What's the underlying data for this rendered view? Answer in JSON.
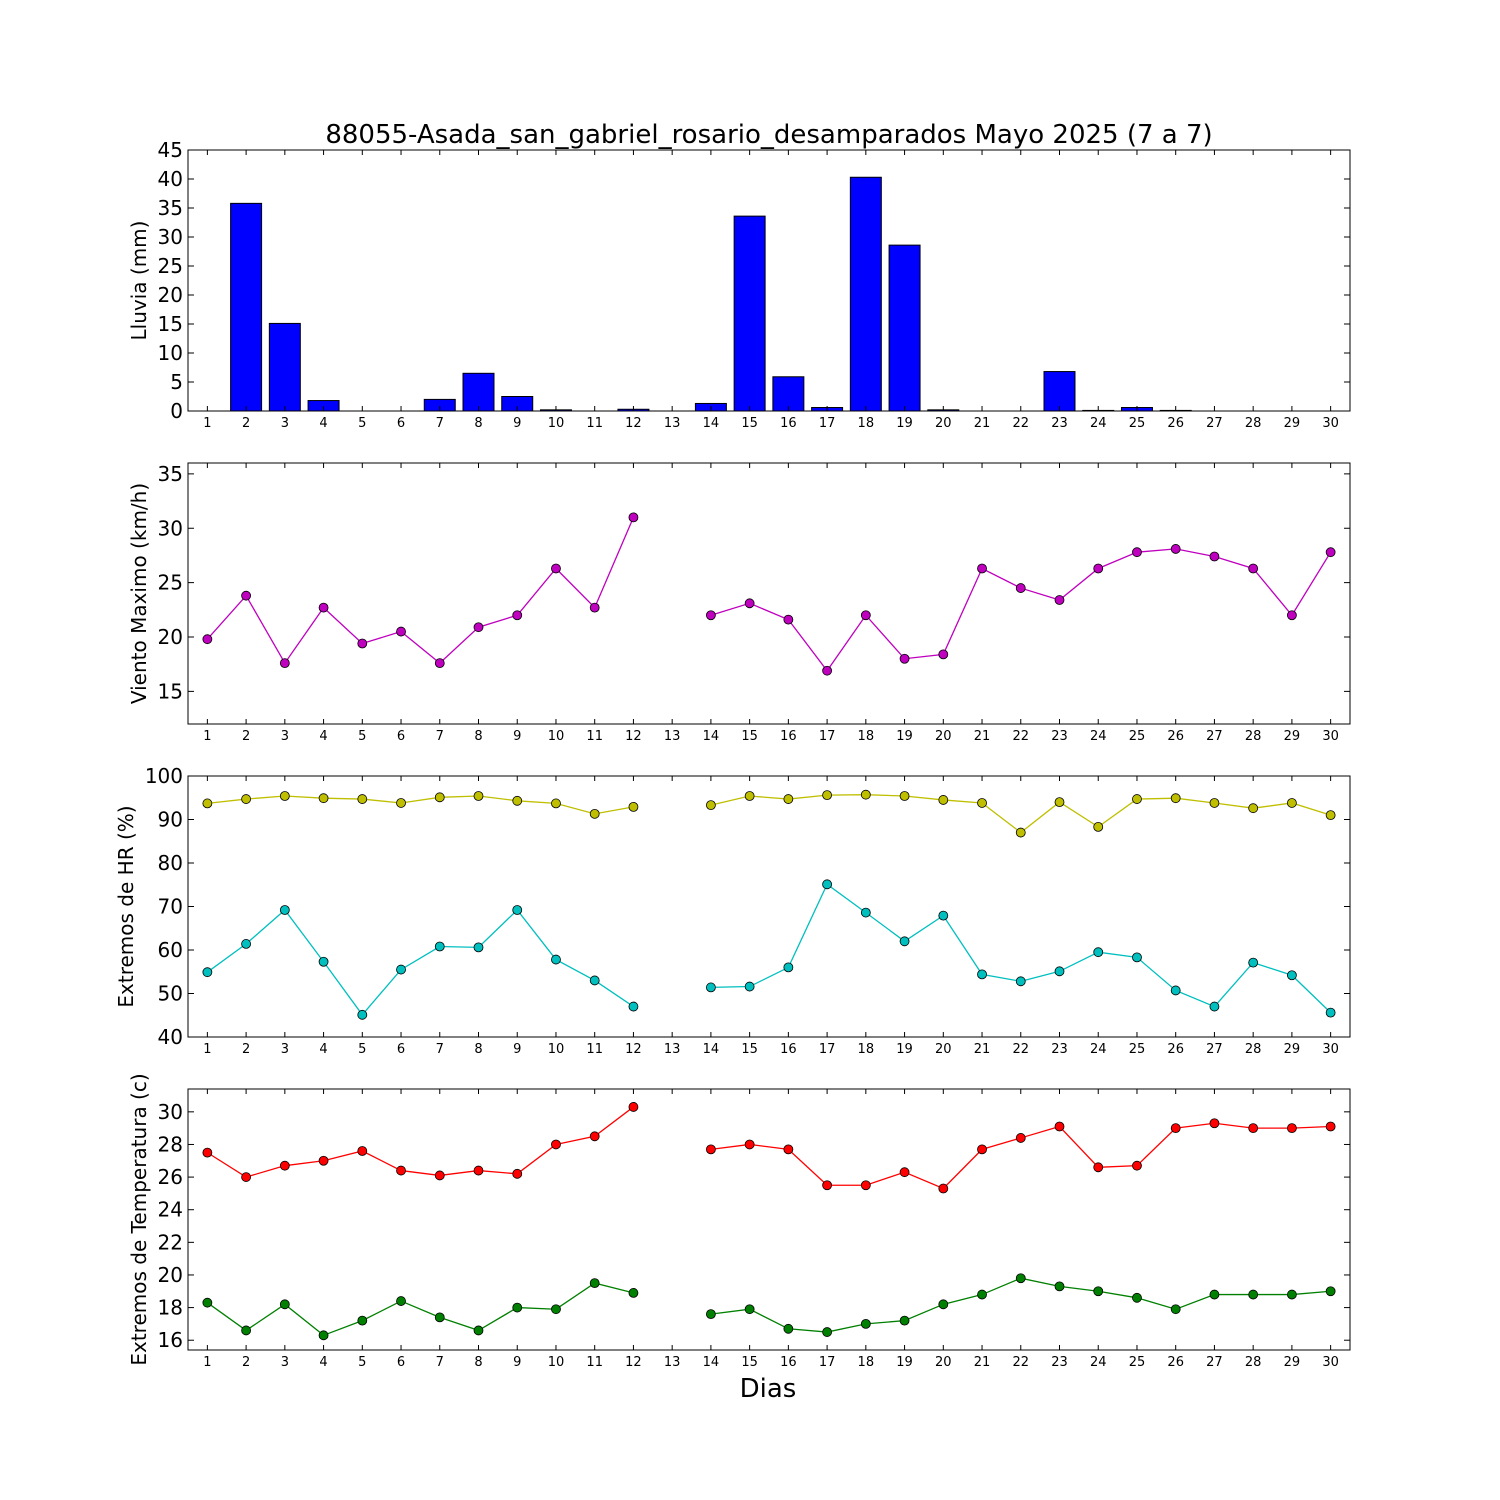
{
  "title": "88055-Asada_san_gabriel_rosario_desamparados Mayo 2025  (7 a 7)",
  "xlabel": "Dias",
  "colors": {
    "rain_bar": "#0000ff",
    "wind": "#bf00bf",
    "hr_max": "#bfbf00",
    "hr_min": "#00bfbf",
    "temp_max": "#ff0000",
    "temp_min": "#008000"
  },
  "chart_data": [
    {
      "type": "bar",
      "ylabel": "Lluvia (mm)",
      "ylim": [
        0,
        45
      ],
      "yticks": [
        0,
        5,
        10,
        15,
        20,
        25,
        30,
        35,
        40,
        45
      ],
      "categories": [
        1,
        2,
        3,
        4,
        5,
        6,
        7,
        8,
        9,
        10,
        11,
        12,
        13,
        14,
        15,
        16,
        17,
        18,
        19,
        20,
        21,
        22,
        23,
        24,
        25,
        26,
        27,
        28,
        29,
        30
      ],
      "values": [
        0,
        35.8,
        15.1,
        1.8,
        0,
        0,
        2.0,
        6.5,
        2.5,
        0.2,
        0,
        0.3,
        0,
        1.3,
        33.6,
        5.9,
        0.6,
        40.3,
        28.6,
        0.2,
        0,
        0,
        6.8,
        0.1,
        0.6,
        0.1,
        0,
        0,
        0,
        0
      ],
      "grid": false
    },
    {
      "type": "line",
      "ylabel": "Viento Maximo (km/h)",
      "ylim": [
        12,
        36
      ],
      "yticks": [
        15,
        20,
        25,
        30,
        35
      ],
      "x": [
        1,
        2,
        3,
        4,
        5,
        6,
        7,
        8,
        9,
        10,
        11,
        12,
        13,
        14,
        15,
        16,
        17,
        18,
        19,
        20,
        21,
        22,
        23,
        24,
        25,
        26,
        27,
        28,
        29,
        30
      ],
      "series": [
        {
          "values": [
            19.8,
            23.8,
            17.6,
            22.7,
            19.4,
            20.5,
            17.6,
            20.9,
            22.0,
            26.3,
            22.7,
            31.0,
            null,
            22.0,
            23.1,
            21.6,
            16.9,
            22.0,
            18.0,
            18.4,
            26.3,
            24.5,
            23.4,
            26.3,
            27.8,
            28.1,
            27.4,
            26.3,
            22.0,
            27.8
          ]
        }
      ],
      "grid": false
    },
    {
      "type": "line",
      "ylabel": "Extremos de HR (%)",
      "ylim": [
        40,
        100
      ],
      "yticks": [
        40,
        50,
        60,
        70,
        80,
        90,
        100
      ],
      "x": [
        1,
        2,
        3,
        4,
        5,
        6,
        7,
        8,
        9,
        10,
        11,
        12,
        13,
        14,
        15,
        16,
        17,
        18,
        19,
        20,
        21,
        22,
        23,
        24,
        25,
        26,
        27,
        28,
        29,
        30
      ],
      "series": [
        {
          "values": [
            93.7,
            94.7,
            95.4,
            94.9,
            94.7,
            93.8,
            95.1,
            95.4,
            94.3,
            93.7,
            91.3,
            92.9,
            null,
            93.3,
            95.4,
            94.7,
            95.6,
            95.7,
            95.4,
            94.5,
            93.8,
            87.0,
            94.0,
            88.3,
            94.7,
            94.9,
            93.8,
            92.6,
            93.8,
            91.0
          ]
        },
        {
          "values": [
            54.9,
            61.4,
            69.2,
            57.3,
            45.1,
            55.5,
            60.8,
            60.6,
            69.2,
            57.8,
            53.0,
            47.0,
            null,
            51.4,
            51.6,
            56.0,
            75.1,
            68.6,
            62.0,
            67.9,
            54.4,
            52.8,
            55.1,
            59.5,
            58.3,
            50.7,
            47.0,
            57.1,
            54.2,
            45.6
          ]
        }
      ],
      "grid": false
    },
    {
      "type": "line",
      "ylabel": "Extremos de Temperatura (c)",
      "ylim": [
        15.4,
        31.4
      ],
      "yticks": [
        16,
        18,
        20,
        22,
        24,
        26,
        28,
        30
      ],
      "x": [
        1,
        2,
        3,
        4,
        5,
        6,
        7,
        8,
        9,
        10,
        11,
        12,
        13,
        14,
        15,
        16,
        17,
        18,
        19,
        20,
        21,
        22,
        23,
        24,
        25,
        26,
        27,
        28,
        29,
        30
      ],
      "series": [
        {
          "values": [
            27.5,
            26.0,
            26.7,
            27.0,
            27.6,
            26.4,
            26.1,
            26.4,
            26.2,
            28.0,
            28.5,
            30.3,
            null,
            27.7,
            28.0,
            27.7,
            25.5,
            25.5,
            26.3,
            25.3,
            27.7,
            28.4,
            29.1,
            26.6,
            26.7,
            29.0,
            29.3,
            29.0,
            29.0,
            29.1
          ]
        },
        {
          "values": [
            18.3,
            16.6,
            18.2,
            16.3,
            17.2,
            18.4,
            17.4,
            16.6,
            18.0,
            17.9,
            19.5,
            18.9,
            null,
            17.6,
            17.9,
            16.7,
            16.5,
            17.0,
            17.2,
            18.2,
            18.8,
            19.8,
            19.3,
            19.0,
            18.6,
            17.9,
            18.8,
            18.8,
            18.8,
            19.0
          ]
        }
      ],
      "grid": false
    }
  ]
}
